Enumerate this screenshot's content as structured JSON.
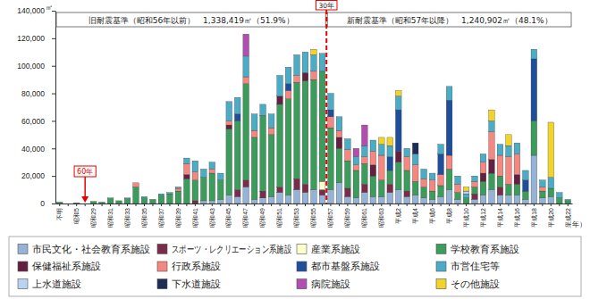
{
  "chart_data": {
    "type": "bar",
    "stacked": true,
    "grid": false,
    "legend": "bottom",
    "ylabel": "㎡",
    "xlabel": "（年）",
    "ylim": [
      0,
      140000
    ],
    "yticks": [
      0,
      {
        "value": 20000,
        "label": "20,000"
      },
      {
        "value": 40000,
        "label": "40,000"
      },
      {
        "value": 60000,
        "label": "60,000"
      },
      {
        "value": 80000,
        "label": "80,000"
      },
      {
        "value": 100000,
        "label": "100,000"
      },
      {
        "value": 120000,
        "label": "120,000"
      },
      {
        "value": 140000,
        "label": "140,000"
      }
    ],
    "categories": [
      "不明",
      null,
      "昭和5",
      null,
      "昭和29",
      null,
      "昭和31",
      null,
      "昭和33",
      null,
      "昭和35",
      null,
      "昭和37",
      null,
      "昭和39",
      null,
      "昭和41",
      null,
      "昭和43",
      null,
      "昭和45",
      null,
      "昭和47",
      null,
      "昭和49",
      null,
      "昭和51",
      null,
      "昭和53",
      null,
      "昭和55",
      null,
      "昭和57",
      null,
      "昭和59",
      null,
      "昭和61",
      null,
      "昭和63",
      null,
      "平成2",
      null,
      "平成4",
      null,
      "平成6",
      null,
      "平成8",
      null,
      "平成10",
      null,
      "平成12",
      null,
      "平成14",
      null,
      "平成16",
      null,
      "平成18",
      null,
      "平成20",
      null,
      "平成22"
    ],
    "series": [
      {
        "name": "市民文化・社会教育系施設",
        "color": "#95b3d7",
        "values": [
          0,
          0,
          0,
          0,
          0,
          0,
          0,
          0,
          0,
          0,
          0,
          0,
          0,
          0,
          0,
          0,
          0,
          2000,
          2000,
          3000,
          6000,
          5000,
          12000,
          3000,
          4000,
          5000,
          8000,
          6000,
          10000,
          8000,
          10000,
          6000,
          10000,
          15000,
          5000,
          4000,
          8000,
          5000,
          5000,
          8000,
          10000,
          5000,
          6000,
          4000,
          3000,
          5000,
          10000,
          3000,
          0,
          3000,
          6000,
          10000,
          6000,
          6000,
          6000,
          3000,
          35000,
          4000,
          5000,
          0,
          0
        ]
      },
      {
        "name": "スポーツ・レクリエーション系施設",
        "color": "#7b2c4a",
        "values": [
          0,
          0,
          0,
          0,
          0,
          0,
          0,
          0,
          0,
          0,
          0,
          0,
          0,
          0,
          0,
          0,
          2000,
          0,
          0,
          0,
          0,
          5000,
          5000,
          0,
          5000,
          0,
          4000,
          0,
          8000,
          6000,
          0,
          4000,
          0,
          0,
          6000,
          0,
          6000,
          0,
          0,
          6000,
          0,
          4000,
          0,
          0,
          0,
          0,
          0,
          0,
          0,
          4000,
          0,
          0,
          6000,
          0,
          0,
          0,
          0,
          0,
          0,
          0,
          0
        ]
      },
      {
        "name": "産業系施設",
        "color": "#ffffcc",
        "values": [
          0,
          0,
          0,
          0,
          0,
          0,
          0,
          0,
          0,
          0,
          0,
          0,
          0,
          0,
          0,
          0,
          0,
          0,
          0,
          0,
          0,
          0,
          0,
          0,
          0,
          0,
          0,
          0,
          0,
          0,
          0,
          6000,
          0,
          0,
          0,
          0,
          0,
          0,
          0,
          0,
          0,
          0,
          0,
          0,
          0,
          0,
          0,
          0,
          0,
          0,
          0,
          0,
          0,
          0,
          0,
          0,
          0,
          0,
          0,
          0,
          0
        ]
      },
      {
        "name": "学校教育系施設",
        "color": "#3c9c5c",
        "values": [
          1000,
          0,
          500,
          0,
          1500,
          1000,
          4000,
          2000,
          3500,
          12000,
          4000,
          3000,
          6000,
          7000,
          9000,
          18000,
          15000,
          17000,
          20000,
          14000,
          48000,
          50000,
          70000,
          45000,
          55000,
          45000,
          60000,
          70000,
          70000,
          75000,
          80000,
          80000,
          45000,
          25000,
          20000,
          20000,
          15000,
          15000,
          12000,
          10000,
          20000,
          15000,
          10000,
          8000,
          6000,
          8000,
          15000,
          5000,
          4000,
          5000,
          10000,
          12000,
          8000,
          8000,
          8000,
          6000,
          25000,
          5000,
          6000,
          4000,
          2000
        ]
      },
      {
        "name": "保健福祉系施設",
        "color": "#632040",
        "values": [
          0,
          0,
          0,
          0,
          0,
          0,
          0,
          0,
          0,
          0,
          0,
          0,
          0,
          0,
          0,
          3000,
          0,
          0,
          0,
          0,
          3000,
          0,
          0,
          0,
          0,
          0,
          6000,
          0,
          0,
          6000,
          0,
          0,
          0,
          8000,
          0,
          0,
          0,
          8000,
          0,
          0,
          8000,
          0,
          0,
          0,
          0,
          0,
          0,
          0,
          0,
          0,
          6000,
          10000,
          0,
          0,
          7000,
          0,
          0,
          0,
          0,
          0,
          0
        ]
      },
      {
        "name": "行政系施設",
        "color": "#f4877f",
        "values": [
          0,
          0,
          0,
          0,
          0,
          0,
          0,
          0,
          0,
          3000,
          0,
          0,
          0,
          0,
          2000,
          8000,
          6000,
          0,
          3000,
          0,
          3000,
          0,
          5000,
          5000,
          0,
          5000,
          0,
          6000,
          5000,
          0,
          6000,
          0,
          8000,
          5000,
          8000,
          4000,
          5000,
          10000,
          18000,
          0,
          0,
          10000,
          12000,
          6000,
          8000,
          8000,
          10000,
          6000,
          0,
          4000,
          8000,
          20000,
          15000,
          20000,
          15000,
          0,
          0,
          3000,
          0,
          0,
          0
        ]
      },
      {
        "name": "都市基盤系施設",
        "color": "#1f4e9a",
        "values": [
          0,
          0,
          0,
          0,
          0,
          0,
          0,
          0,
          0,
          0,
          0,
          0,
          0,
          0,
          0,
          0,
          0,
          0,
          0,
          0,
          0,
          5000,
          0,
          0,
          0,
          0,
          0,
          5000,
          0,
          0,
          0,
          0,
          5000,
          0,
          0,
          0,
          0,
          0,
          0,
          10000,
          30000,
          0,
          0,
          0,
          0,
          15000,
          40000,
          0,
          0,
          0,
          0,
          0,
          0,
          0,
          0,
          8000,
          45000,
          0,
          0,
          0,
          0
        ]
      },
      {
        "name": "市営住宅等",
        "color": "#4bacc6",
        "values": [
          0,
          0,
          0,
          0,
          0,
          0,
          0,
          0,
          500,
          0,
          1000,
          0,
          1000,
          1000,
          1000,
          4000,
          8000,
          6000,
          5000,
          5000,
          14000,
          12000,
          15000,
          12000,
          8000,
          10000,
          15000,
          12000,
          15000,
          15000,
          12000,
          13000,
          12000,
          10000,
          8000,
          6000,
          8000,
          8000,
          8000,
          8000,
          10000,
          6000,
          8000,
          7000,
          5000,
          7000,
          10000,
          6000,
          3000,
          4000,
          6000,
          8000,
          8000,
          8000,
          8000,
          7000,
          7000,
          5000,
          8000,
          4000,
          1000
        ]
      },
      {
        "name": "上水道施設",
        "color": "#b8d4f0",
        "values": [
          0,
          0,
          0,
          0,
          0,
          0,
          0,
          0,
          0,
          0,
          0,
          0,
          0,
          0,
          0,
          0,
          0,
          0,
          0,
          0,
          0,
          0,
          0,
          0,
          0,
          0,
          0,
          0,
          0,
          0,
          0,
          0,
          0,
          0,
          0,
          0,
          0,
          0,
          0,
          0,
          0,
          0,
          0,
          0,
          0,
          0,
          0,
          0,
          2000,
          0,
          0,
          0,
          0,
          0,
          0,
          0,
          0,
          0,
          0,
          0,
          0
        ]
      },
      {
        "name": "下水道施設",
        "color": "#1f2d56",
        "values": [
          0,
          0,
          0,
          0,
          0,
          0,
          0,
          0,
          0,
          0,
          0,
          0,
          0,
          0,
          0,
          0,
          0,
          0,
          0,
          0,
          0,
          0,
          0,
          0,
          0,
          0,
          0,
          0,
          0,
          0,
          0,
          0,
          0,
          0,
          0,
          0,
          0,
          0,
          0,
          0,
          0,
          0,
          8000,
          0,
          0,
          0,
          0,
          0,
          0,
          0,
          0,
          0,
          0,
          0,
          0,
          0,
          0,
          0,
          0,
          0,
          0
        ]
      },
      {
        "name": "病院施設",
        "color": "#b04fb0",
        "values": [
          0,
          0,
          0,
          0,
          0,
          0,
          0,
          0,
          0,
          0,
          0,
          0,
          0,
          0,
          0,
          0,
          0,
          0,
          0,
          0,
          0,
          0,
          16000,
          0,
          0,
          0,
          0,
          0,
          0,
          0,
          0,
          0,
          0,
          0,
          0,
          6000,
          15000,
          0,
          0,
          0,
          0,
          0,
          0,
          0,
          0,
          0,
          0,
          0,
          0,
          0,
          0,
          0,
          0,
          0,
          0,
          0,
          0,
          0,
          0,
          0,
          0
        ]
      },
      {
        "name": "その他施設",
        "color": "#f2d32a",
        "values": [
          0,
          0,
          0,
          0,
          0,
          0,
          0,
          0,
          0,
          0,
          0,
          0,
          0,
          0,
          0,
          0,
          0,
          0,
          0,
          0,
          0,
          0,
          0,
          0,
          0,
          0,
          0,
          0,
          0,
          0,
          4000,
          0,
          0,
          0,
          0,
          0,
          0,
          0,
          5000,
          6000,
          4000,
          0,
          0,
          0,
          0,
          0,
          0,
          0,
          3000,
          0,
          0,
          8000,
          0,
          8000,
          0,
          0,
          0,
          0,
          40000,
          0,
          0
        ]
      }
    ],
    "annotations": [
      {
        "type": "band",
        "text": "旧耐震基準（昭和56年以前）　1,338,419㎡（51.9%）",
        "x": [
          -0.5,
          31.5
        ]
      },
      {
        "type": "band",
        "text": "新耐震基準（昭和57年以降）　1,240,902㎡（48.1%）",
        "x": [
          31.5,
          60.5
        ]
      },
      {
        "type": "line",
        "text": "30年",
        "x": 31.5,
        "line_style": "dashed",
        "color": "#e60000"
      },
      {
        "type": "arrow",
        "text": "60年",
        "x": 3,
        "color": "#e60000"
      }
    ]
  }
}
